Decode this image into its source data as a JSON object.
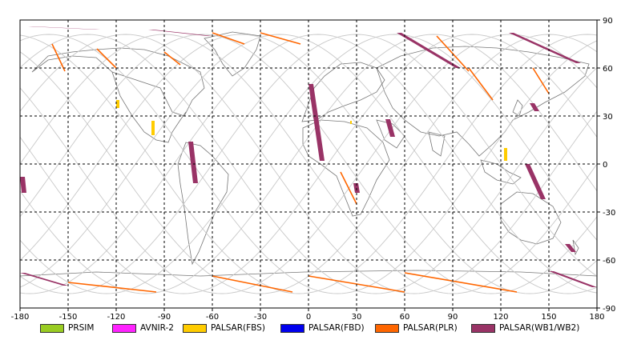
{
  "chart_data": {
    "type": "map",
    "projection": "equirectangular",
    "xlim": [
      -180,
      180
    ],
    "ylim": [
      -90,
      90
    ],
    "x_ticks": [
      "-180",
      "-150",
      "-120",
      "-90",
      "-60",
      "-30",
      "0",
      "30",
      "60",
      "90",
      "120",
      "150",
      "180"
    ],
    "y_ticks": [
      "90",
      "60",
      "30",
      "0",
      "-30",
      "-60",
      "-90"
    ],
    "grid": true,
    "legend": [
      {
        "label": "PRSIM",
        "color": "#99cc22"
      },
      {
        "label": "AVNIR-2",
        "color": "#ff22ff"
      },
      {
        "label": "PALSAR(FBS)",
        "color": "#ffcc00"
      },
      {
        "label": "PALSAR(FBD)",
        "color": "#0000ee"
      },
      {
        "label": "PALSAR(PLR)",
        "color": "#ff6600"
      },
      {
        "label": "PALSAR(WB1/WB2)",
        "color": "#993366"
      }
    ],
    "wb_swaths": [
      {
        "lon": [
          -175,
          -130
        ],
        "lat": [
          86,
          84
        ]
      },
      {
        "lon": [
          -100,
          -60
        ],
        "lat": [
          84,
          80
        ]
      },
      {
        "lon": [
          55,
          95
        ],
        "lat": [
          82,
          60
        ]
      },
      {
        "lon": [
          125,
          170
        ],
        "lat": [
          82,
          63
        ]
      },
      {
        "lon": [
          0,
          10
        ],
        "lat": [
          50,
          2
        ]
      },
      {
        "lon": [
          -75,
          -69
        ],
        "lat": [
          14,
          -12
        ]
      },
      {
        "lon": [
          -180,
          -176
        ],
        "lat": [
          -8,
          -18
        ]
      },
      {
        "lon": [
          -180,
          -150
        ],
        "lat": [
          -68,
          -76
        ]
      },
      {
        "lon": [
          150,
          180
        ],
        "lat": [
          -67,
          -77
        ]
      },
      {
        "lon": [
          135,
          148
        ],
        "lat": [
          0,
          -22
        ]
      },
      {
        "lon": [
          48,
          54
        ],
        "lat": [
          28,
          17
        ]
      },
      {
        "lon": [
          160,
          167
        ],
        "lat": [
          -50,
          -55
        ]
      },
      {
        "lon": [
          138,
          144
        ],
        "lat": [
          38,
          33
        ]
      },
      {
        "lon": [
          28,
          32
        ],
        "lat": [
          -12,
          -18
        ]
      }
    ],
    "plr_tracks": [
      {
        "lon": [
          -160,
          -152
        ],
        "lat": [
          75,
          58
        ]
      },
      {
        "lon": [
          -132,
          -120
        ],
        "lat": [
          72,
          60
        ]
      },
      {
        "lon": [
          -90,
          -80
        ],
        "lat": [
          70,
          62
        ]
      },
      {
        "lon": [
          -60,
          -40
        ],
        "lat": [
          82,
          75
        ]
      },
      {
        "lon": [
          -30,
          -5
        ],
        "lat": [
          82,
          75
        ]
      },
      {
        "lon": [
          80,
          100
        ],
        "lat": [
          80,
          58
        ]
      },
      {
        "lon": [
          100,
          115
        ],
        "lat": [
          60,
          40
        ]
      },
      {
        "lon": [
          140,
          150
        ],
        "lat": [
          60,
          44
        ]
      },
      {
        "lon": [
          20,
          30
        ],
        "lat": [
          -5,
          -25
        ]
      },
      {
        "lon": [
          -150,
          -95
        ],
        "lat": [
          -74,
          -80
        ]
      },
      {
        "lon": [
          -60,
          -10
        ],
        "lat": [
          -70,
          -80
        ]
      },
      {
        "lon": [
          0,
          60
        ],
        "lat": [
          -70,
          -80
        ]
      },
      {
        "lon": [
          60,
          130
        ],
        "lat": [
          -68,
          -80
        ]
      }
    ],
    "fbs_strips": [
      {
        "lon": [
          -120,
          -118
        ],
        "lat": [
          40,
          35
        ]
      },
      {
        "lon": [
          -98,
          -96
        ],
        "lat": [
          27,
          18
        ]
      },
      {
        "lon": [
          26,
          27
        ],
        "lat": [
          27,
          25
        ]
      },
      {
        "lon": [
          122,
          124
        ],
        "lat": [
          10,
          2
        ]
      }
    ]
  }
}
